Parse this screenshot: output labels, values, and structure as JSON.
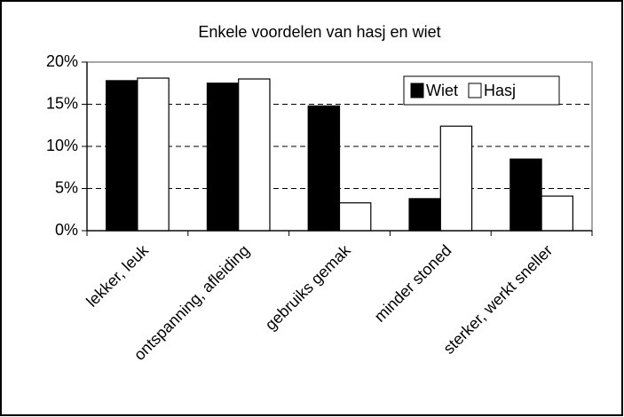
{
  "chart_data": {
    "type": "bar",
    "title": "Enkele voordelen van hasj en wiet",
    "categories": [
      "lekker, leuk",
      "ontspanning, afleiding",
      "gebruiks gemak",
      "minder stoned",
      "sterker, werkt sneller"
    ],
    "series": [
      {
        "name": "Wiet",
        "color": "#000000",
        "values": [
          17.8,
          17.5,
          14.8,
          3.8,
          8.5
        ]
      },
      {
        "name": "Hasj",
        "color": "#ffffff",
        "values": [
          18.1,
          18.0,
          3.3,
          12.4,
          4.1
        ]
      }
    ],
    "ylim": [
      0,
      20
    ],
    "yticks": [
      {
        "value": 0,
        "label": "0%"
      },
      {
        "value": 5,
        "label": "5%"
      },
      {
        "value": 10,
        "label": "10%"
      },
      {
        "value": 15,
        "label": "15%"
      },
      {
        "value": 20,
        "label": "20%"
      }
    ],
    "grid": true,
    "legend": "upper right"
  }
}
